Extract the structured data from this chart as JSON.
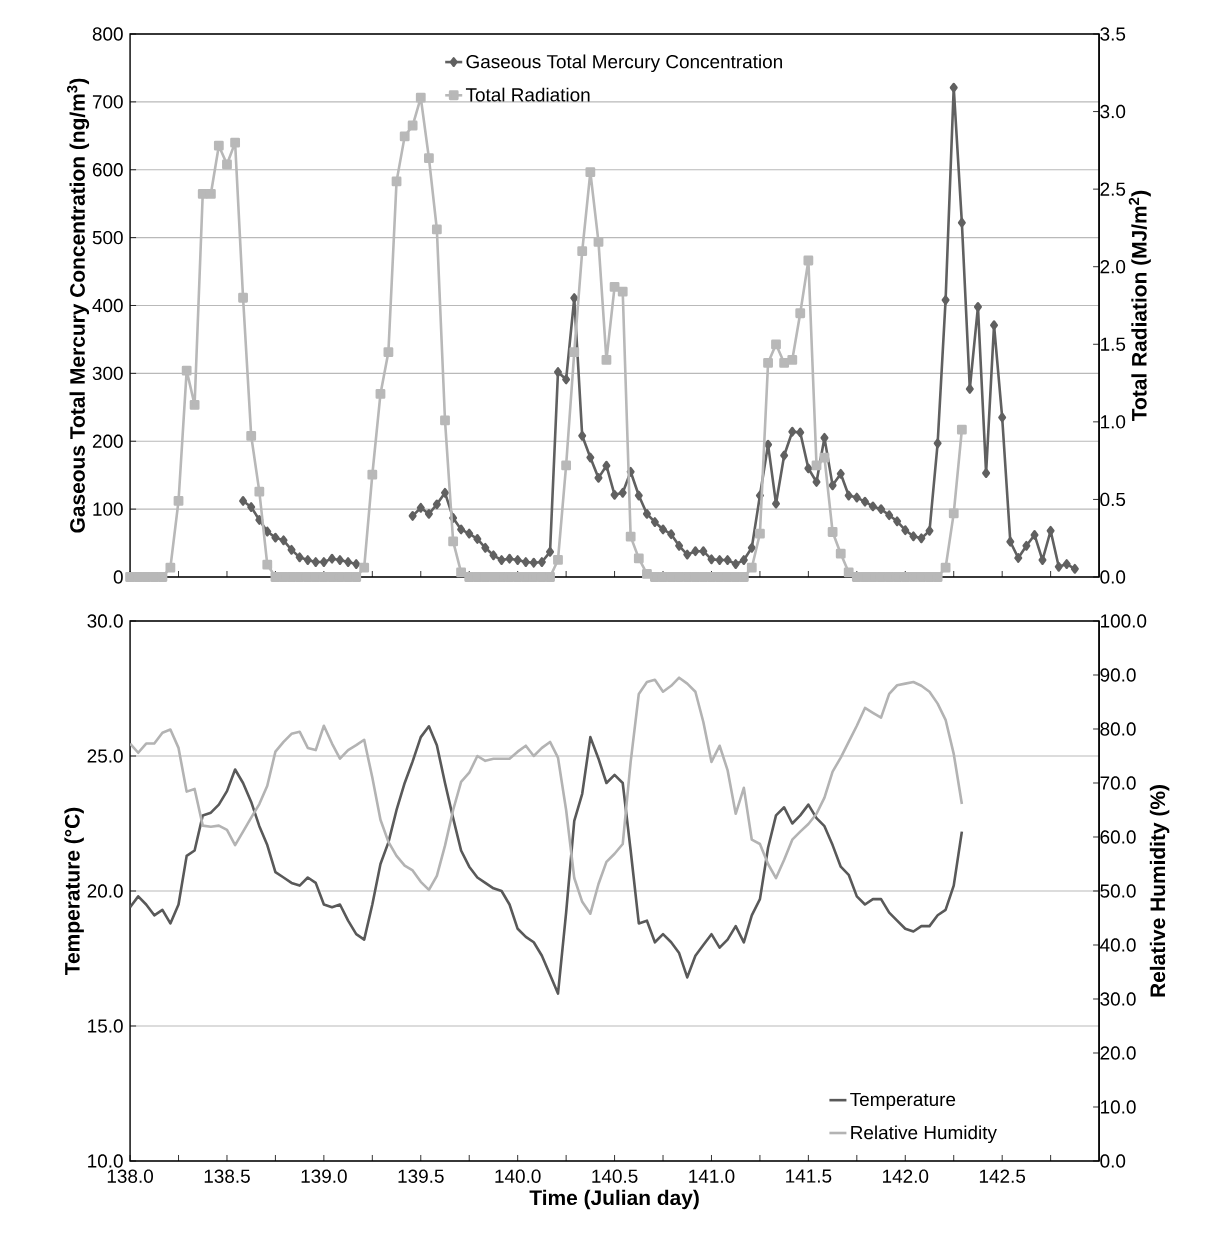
{
  "chart_data": [
    {
      "type": "line",
      "ylabel": "Gaseous Total Mercury Concentration (ng/m$^{3}$)",
      "y2label": "Total Radiation  (MJ/m$^{2}$)",
      "xlim": [
        138,
        143
      ],
      "ylim": [
        0,
        800
      ],
      "y2lim": [
        0,
        3.5
      ],
      "tick_labels": "y",
      "grid": "y",
      "legend": "top",
      "xticks": [
        {
          "value": 138,
          "label": null
        },
        {
          "value": 138.25,
          "label": null
        },
        {
          "value": 138.5,
          "label": null
        },
        {
          "value": 138.75,
          "label": null
        },
        {
          "value": 139,
          "label": null
        },
        {
          "value": 139.25,
          "label": null
        },
        {
          "value": 139.5,
          "label": null
        },
        {
          "value": 139.75,
          "label": null
        },
        {
          "value": 140,
          "label": null
        },
        {
          "value": 140.25,
          "label": null
        },
        {
          "value": 140.5,
          "label": null
        },
        {
          "value": 140.75,
          "label": null
        },
        {
          "value": 141,
          "label": null
        },
        {
          "value": 141.25,
          "label": null
        },
        {
          "value": 141.5,
          "label": null
        },
        {
          "value": 141.75,
          "label": null
        },
        {
          "value": 142,
          "label": null
        },
        {
          "value": 142.25,
          "label": null
        },
        {
          "value": 142.5,
          "label": null
        },
        {
          "value": 142.75,
          "label": null
        }
      ],
      "yticks": [
        0,
        100,
        200,
        300,
        400,
        500,
        600,
        700,
        800
      ],
      "y2ticks": [
        {
          "value": 0,
          "label": "0.0"
        },
        {
          "value": 0.5,
          "label": "0.5"
        },
        {
          "value": 1,
          "label": "1.0"
        },
        {
          "value": 1.5,
          "label": "1.5"
        },
        {
          "value": 2,
          "label": "2.0"
        },
        {
          "value": 2.5,
          "label": "2.5"
        },
        {
          "value": 3,
          "label": "3.0"
        },
        {
          "value": 3.5,
          "label": "3.5"
        }
      ],
      "x": [
        138,
        138.042,
        138.083,
        138.125,
        138.167,
        138.208,
        138.25,
        138.292,
        138.333,
        138.375,
        138.417,
        138.458,
        138.5,
        138.542,
        138.583,
        138.625,
        138.667,
        138.708,
        138.75,
        138.792,
        138.833,
        138.875,
        138.917,
        138.958,
        139,
        139.042,
        139.083,
        139.125,
        139.167,
        139.208,
        139.25,
        139.292,
        139.333,
        139.375,
        139.417,
        139.458,
        139.5,
        139.542,
        139.583,
        139.625,
        139.667,
        139.708,
        139.75,
        139.792,
        139.833,
        139.875,
        139.917,
        139.958,
        140,
        140.042,
        140.083,
        140.125,
        140.167,
        140.208,
        140.25,
        140.292,
        140.333,
        140.375,
        140.417,
        140.458,
        140.5,
        140.542,
        140.583,
        140.625,
        140.667,
        140.708,
        140.75,
        140.792,
        140.833,
        140.875,
        140.917,
        140.958,
        141,
        141.042,
        141.083,
        141.125,
        141.167,
        141.208,
        141.25,
        141.292,
        141.333,
        141.375,
        141.417,
        141.458,
        141.5,
        141.542,
        141.583,
        141.625,
        141.667,
        141.708,
        141.75,
        141.792,
        141.833,
        141.875,
        141.917,
        141.958,
        142,
        142.042,
        142.083,
        142.125,
        142.167,
        142.208,
        142.25,
        142.292,
        142.333,
        142.375,
        142.417,
        142.458,
        142.5,
        142.542,
        142.583,
        142.625,
        142.667,
        142.708,
        142.75,
        142.792,
        142.833,
        142.875
      ],
      "series": [
        {
          "name": "Gaseous Total Mercury Concentration",
          "color": "#606060",
          "marker": "diamond",
          "values": [
            null,
            null,
            null,
            null,
            null,
            null,
            null,
            null,
            null,
            null,
            null,
            null,
            null,
            null,
            112,
            103,
            84,
            67,
            58,
            54,
            40,
            29,
            25,
            22,
            22,
            27,
            25,
            22,
            19,
            null,
            null,
            null,
            null,
            null,
            null,
            90,
            102,
            93,
            107,
            124,
            87,
            70,
            64,
            56,
            43,
            32,
            25,
            27,
            25,
            22,
            21,
            22,
            37,
            302,
            291,
            411,
            208,
            176,
            146,
            164,
            121,
            124,
            155,
            120,
            93,
            81,
            70,
            63,
            46,
            33,
            38,
            38,
            26,
            25,
            25,
            19,
            25,
            43,
            120,
            195,
            108,
            179,
            214,
            213,
            160,
            140,
            205,
            135,
            152,
            120,
            117,
            111,
            104,
            100,
            91,
            82,
            69,
            60,
            57,
            68,
            197,
            408,
            721,
            522,
            277,
            398,
            153,
            371,
            235,
            52,
            28,
            46,
            62,
            25,
            68,
            15,
            19,
            12
          ]
        },
        {
          "name": "Total Radiation",
          "color": "#b8b8b8",
          "marker": "square",
          "axis": "y2",
          "values": [
            0,
            0,
            0,
            0,
            0,
            0.06,
            0.49,
            1.33,
            1.11,
            2.47,
            2.47,
            2.78,
            2.66,
            2.8,
            1.8,
            0.91,
            0.55,
            0.08,
            0,
            0,
            0,
            0,
            0,
            0,
            0,
            0,
            0,
            0,
            0,
            0.06,
            0.66,
            1.18,
            1.45,
            2.55,
            2.84,
            2.91,
            3.09,
            2.7,
            2.24,
            1.01,
            0.23,
            0.03,
            0,
            0,
            0,
            0,
            0,
            0,
            0,
            0,
            0,
            0,
            0,
            0.11,
            0.72,
            1.45,
            2.1,
            2.61,
            2.16,
            1.4,
            1.87,
            1.84,
            0.26,
            0.12,
            0.02,
            0,
            0,
            0,
            0,
            0,
            0,
            0,
            0,
            0,
            0,
            0,
            0,
            0.06,
            0.28,
            1.38,
            1.5,
            1.38,
            1.4,
            1.7,
            2.04,
            0.72,
            0.77,
            0.29,
            0.15,
            0.03,
            0,
            0,
            0,
            0,
            0,
            0,
            0,
            0,
            0,
            0,
            0,
            0.06,
            0.41,
            0.95,
            null,
            null,
            null,
            null,
            null,
            null,
            null,
            null,
            null,
            null,
            null,
            null,
            null,
            null
          ]
        }
      ]
    },
    {
      "type": "line",
      "xlabel": "Time (Julian day)",
      "ylabel": "Temperature (°C)",
      "y2label": "Relative Humidity (%)",
      "xlim": [
        138,
        143
      ],
      "ylim": [
        10,
        30
      ],
      "y2lim": [
        0,
        100
      ],
      "grid": "y",
      "legend": "bottom right",
      "xticks": [
        {
          "value": 138,
          "label": "138.0"
        },
        {
          "value": 138.25,
          "label": null
        },
        {
          "value": 138.5,
          "label": "138.5"
        },
        {
          "value": 138.75,
          "label": null
        },
        {
          "value": 139,
          "label": "139.0"
        },
        {
          "value": 139.25,
          "label": null
        },
        {
          "value": 139.5,
          "label": "139.5"
        },
        {
          "value": 139.75,
          "label": null
        },
        {
          "value": 140,
          "label": "140.0"
        },
        {
          "value": 140.25,
          "label": null
        },
        {
          "value": 140.5,
          "label": "140.5"
        },
        {
          "value": 140.75,
          "label": null
        },
        {
          "value": 141,
          "label": "141.0"
        },
        {
          "value": 141.25,
          "label": null
        },
        {
          "value": 141.5,
          "label": "141.5"
        },
        {
          "value": 141.75,
          "label": null
        },
        {
          "value": 142,
          "label": "142.0"
        },
        {
          "value": 142.25,
          "label": null
        },
        {
          "value": 142.5,
          "label": "142.5"
        },
        {
          "value": 142.75,
          "label": null
        }
      ],
      "yticks": [
        {
          "value": 10,
          "label": "10.0"
        },
        {
          "value": 15,
          "label": "15.0"
        },
        {
          "value": 20,
          "label": "20.0"
        },
        {
          "value": 25,
          "label": "25.0"
        },
        {
          "value": 30,
          "label": "30.0"
        }
      ],
      "y2ticks": [
        {
          "value": 0,
          "label": "0.0"
        },
        {
          "value": 10,
          "label": "10.0"
        },
        {
          "value": 20,
          "label": "20.0"
        },
        {
          "value": 30,
          "label": "30.0"
        },
        {
          "value": 40,
          "label": "40.0"
        },
        {
          "value": 50,
          "label": "50.0"
        },
        {
          "value": 60,
          "label": "60.0"
        },
        {
          "value": 70,
          "label": "70.0"
        },
        {
          "value": 80,
          "label": "80.0"
        },
        {
          "value": 90,
          "label": "90.0"
        },
        {
          "value": 100,
          "label": "100.0"
        }
      ],
      "x": [
        138,
        138.042,
        138.083,
        138.125,
        138.167,
        138.208,
        138.25,
        138.292,
        138.333,
        138.375,
        138.417,
        138.458,
        138.5,
        138.542,
        138.583,
        138.625,
        138.667,
        138.708,
        138.75,
        138.792,
        138.833,
        138.875,
        138.917,
        138.958,
        139,
        139.042,
        139.083,
        139.125,
        139.167,
        139.208,
        139.25,
        139.292,
        139.333,
        139.375,
        139.417,
        139.458,
        139.5,
        139.542,
        139.583,
        139.625,
        139.667,
        139.708,
        139.75,
        139.792,
        139.833,
        139.875,
        139.917,
        139.958,
        140,
        140.042,
        140.083,
        140.125,
        140.167,
        140.208,
        140.25,
        140.292,
        140.333,
        140.375,
        140.417,
        140.458,
        140.5,
        140.542,
        140.583,
        140.625,
        140.667,
        140.708,
        140.75,
        140.792,
        140.833,
        140.875,
        140.917,
        140.958,
        141,
        141.042,
        141.083,
        141.125,
        141.167,
        141.208,
        141.25,
        141.292,
        141.333,
        141.375,
        141.417,
        141.458,
        141.5,
        141.542,
        141.583,
        141.625,
        141.667,
        141.708,
        141.75,
        141.792,
        141.833,
        141.875,
        141.917,
        141.958,
        142,
        142.042,
        142.083,
        142.125,
        142.167,
        142.208,
        142.25,
        142.292
      ],
      "series": [
        {
          "name": "Temperature",
          "color": "#595959",
          "marker": "none",
          "values": [
            19.4,
            19.8,
            19.5,
            19.1,
            19.3,
            18.8,
            19.5,
            21.3,
            21.5,
            22.8,
            22.9,
            23.2,
            23.7,
            24.5,
            24.0,
            23.3,
            22.4,
            21.7,
            20.7,
            20.5,
            20.3,
            20.2,
            20.5,
            20.3,
            19.5,
            19.4,
            19.5,
            18.9,
            18.4,
            18.2,
            19.5,
            21.0,
            21.8,
            23.0,
            24.0,
            24.8,
            25.7,
            26.1,
            25.4,
            24.0,
            22.7,
            21.5,
            20.9,
            20.5,
            20.3,
            20.1,
            20.0,
            19.5,
            18.6,
            18.3,
            18.1,
            17.6,
            16.9,
            16.2,
            19.2,
            22.6,
            23.6,
            25.7,
            24.9,
            24.0,
            24.3,
            24.0,
            21.5,
            18.8,
            18.9,
            18.1,
            18.4,
            18.1,
            17.7,
            16.8,
            17.6,
            18.0,
            18.4,
            17.9,
            18.2,
            18.7,
            18.1,
            19.1,
            19.7,
            21.6,
            22.8,
            23.1,
            22.5,
            22.8,
            23.2,
            22.7,
            22.4,
            21.7,
            20.9,
            20.6,
            19.8,
            19.5,
            19.7,
            19.7,
            19.2,
            18.9,
            18.6,
            18.5,
            18.7,
            18.7,
            19.1,
            19.3,
            20.2,
            22.2
          ]
        },
        {
          "name": "Relative Humidity",
          "color": "#b3b3b3",
          "marker": "none",
          "axis": "y2",
          "values": [
            77.3,
            75.6,
            77.3,
            77.3,
            79.3,
            79.9,
            76.5,
            68.4,
            68.9,
            62.1,
            61.9,
            62.1,
            61.3,
            58.5,
            61.0,
            63.6,
            66.1,
            69.5,
            75.8,
            77.6,
            79.1,
            79.5,
            76.5,
            76.1,
            80.6,
            77.3,
            74.5,
            76.1,
            77.0,
            78.0,
            71.0,
            63.2,
            59.1,
            56.5,
            54.7,
            53.8,
            51.7,
            50.2,
            52.8,
            58.4,
            65.0,
            70.2,
            71.9,
            75.0,
            74.1,
            74.5,
            74.5,
            74.5,
            75.8,
            76.9,
            75.0,
            76.5,
            77.6,
            74.7,
            65.0,
            52.4,
            48.0,
            45.8,
            51.3,
            55.4,
            56.9,
            58.7,
            73.9,
            86.5,
            88.7,
            89.1,
            86.9,
            88.0,
            89.5,
            88.4,
            86.9,
            81.3,
            73.9,
            76.9,
            72.4,
            64.3,
            69.1,
            59.5,
            58.7,
            55.0,
            52.4,
            55.8,
            59.5,
            61.0,
            62.4,
            64.3,
            67.3,
            72.1,
            74.7,
            77.6,
            80.6,
            83.9,
            83.0,
            82.1,
            86.5,
            88.1,
            88.4,
            88.7,
            88.0,
            86.9,
            84.7,
            81.7,
            75.4,
            66.1
          ]
        }
      ]
    }
  ]
}
